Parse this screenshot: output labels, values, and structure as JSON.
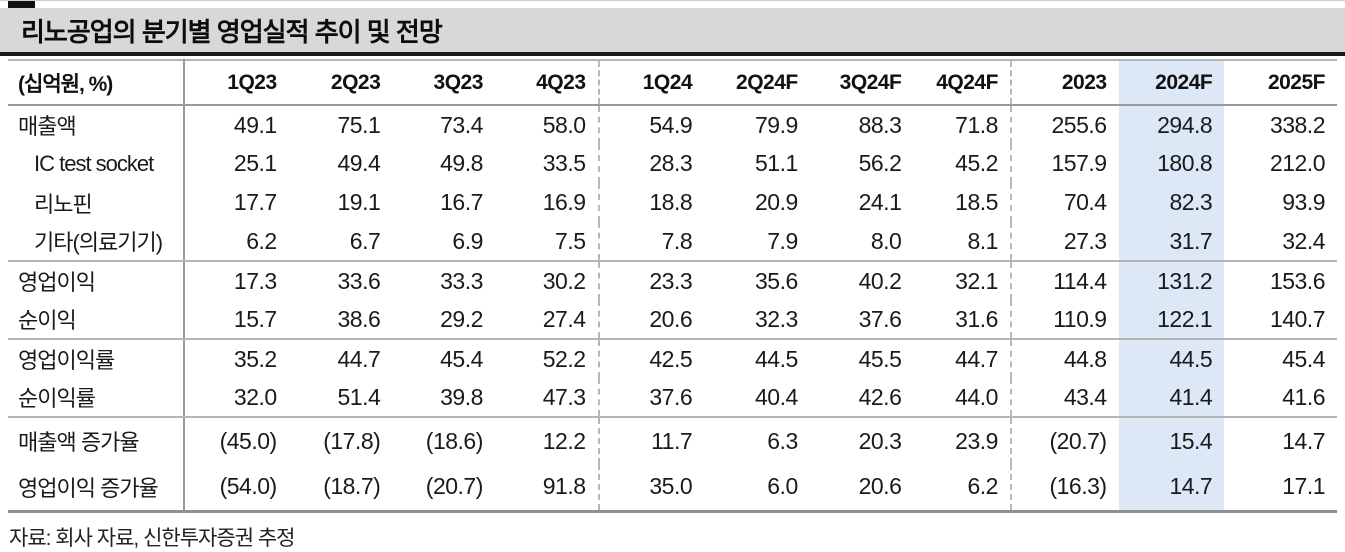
{
  "title": "리노공업의 분기별 영업실적 추이 및 전망",
  "source": "자료: 회사 자료, 신한투자증권 추정",
  "colors": {
    "highlight_column_bg": "#dce8f5",
    "title_bar_bg": "#d8d8d8",
    "rule_black": "#1a1a1a"
  },
  "table": {
    "unit_label": "(십억원, %)",
    "columns": [
      "1Q23",
      "2Q23",
      "3Q23",
      "4Q23",
      "1Q24",
      "2Q24F",
      "3Q24F",
      "4Q24F",
      "2023",
      "2024F",
      "2025F"
    ],
    "highlight_column": "2024F",
    "dashed_after": [
      "4Q23",
      "4Q24F"
    ],
    "rows": [
      {
        "label": "매출액",
        "indent": false,
        "group_end": false,
        "values": [
          "49.1",
          "75.1",
          "73.4",
          "58.0",
          "54.9",
          "79.9",
          "88.3",
          "71.8",
          "255.6",
          "294.8",
          "338.2"
        ]
      },
      {
        "label": "IC test socket",
        "indent": true,
        "group_end": false,
        "values": [
          "25.1",
          "49.4",
          "49.8",
          "33.5",
          "28.3",
          "51.1",
          "56.2",
          "45.2",
          "157.9",
          "180.8",
          "212.0"
        ]
      },
      {
        "label": "리노핀",
        "indent": true,
        "group_end": false,
        "values": [
          "17.7",
          "19.1",
          "16.7",
          "16.9",
          "18.8",
          "20.9",
          "24.1",
          "18.5",
          "70.4",
          "82.3",
          "93.9"
        ]
      },
      {
        "label": "기타(의료기기)",
        "indent": true,
        "group_end": true,
        "values": [
          "6.2",
          "6.7",
          "6.9",
          "7.5",
          "7.8",
          "7.9",
          "8.0",
          "8.1",
          "27.3",
          "31.7",
          "32.4"
        ]
      },
      {
        "label": "영업이익",
        "indent": false,
        "group_end": false,
        "values": [
          "17.3",
          "33.6",
          "33.3",
          "30.2",
          "23.3",
          "35.6",
          "40.2",
          "32.1",
          "114.4",
          "131.2",
          "153.6"
        ]
      },
      {
        "label": "순이익",
        "indent": false,
        "group_end": true,
        "values": [
          "15.7",
          "38.6",
          "29.2",
          "27.4",
          "20.6",
          "32.3",
          "37.6",
          "31.6",
          "110.9",
          "122.1",
          "140.7"
        ]
      },
      {
        "label": "영업이익률",
        "indent": false,
        "group_end": false,
        "values": [
          "35.2",
          "44.7",
          "45.4",
          "52.2",
          "42.5",
          "44.5",
          "45.5",
          "44.7",
          "44.8",
          "44.5",
          "45.4"
        ]
      },
      {
        "label": "순이익률",
        "indent": false,
        "group_end": true,
        "values": [
          "32.0",
          "51.4",
          "39.8",
          "47.3",
          "37.6",
          "40.4",
          "42.6",
          "44.0",
          "43.4",
          "41.4",
          "41.6"
        ]
      },
      {
        "label": "매출액 증가율",
        "indent": false,
        "group_end": false,
        "values": [
          "(45.0)",
          "(17.8)",
          "(18.6)",
          "12.2",
          "11.7",
          "6.3",
          "20.3",
          "23.9",
          "(20.7)",
          "15.4",
          "14.7"
        ]
      },
      {
        "label": "영업이익 증가율",
        "indent": false,
        "group_end": false,
        "values": [
          "(54.0)",
          "(18.7)",
          "(20.7)",
          "91.8",
          "35.0",
          "6.0",
          "20.6",
          "6.2",
          "(16.3)",
          "14.7",
          "17.1"
        ]
      }
    ]
  }
}
